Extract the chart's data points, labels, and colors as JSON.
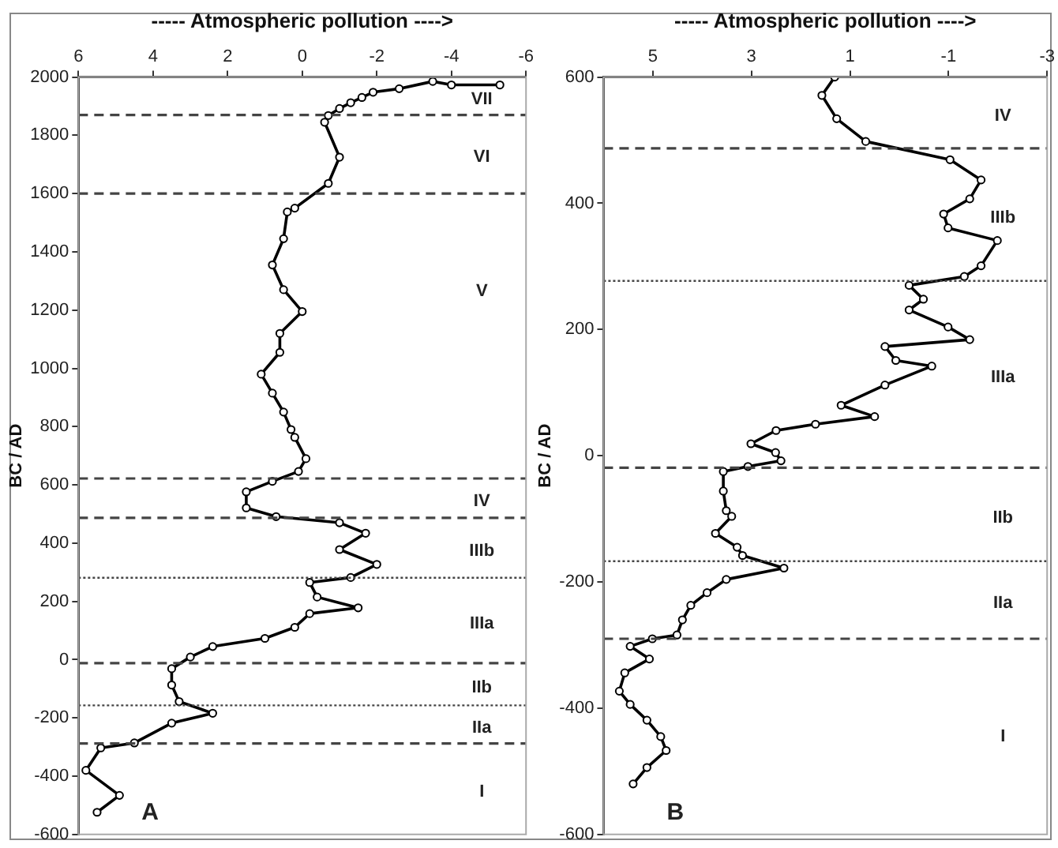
{
  "chart_data": [
    {
      "type": "line",
      "xlabel": "----- Atmospheric pollution ---->",
      "ylabel": "BC / AD",
      "xlim": [
        6,
        -6
      ],
      "xticks": [
        6,
        4,
        2,
        0,
        -2,
        -4,
        -6
      ],
      "ylim": [
        -600,
        2000
      ],
      "yticks": [
        -600,
        -400,
        -200,
        0,
        200,
        400,
        600,
        800,
        1000,
        1200,
        1400,
        1600,
        1800,
        2000
      ],
      "grid": false,
      "legend": false,
      "marker": "circle",
      "line_style": "solid",
      "series": [
        {
          "color": "#000000",
          "x": [
            -5.3,
            -4.0,
            -3.5,
            -2.6,
            -1.9,
            -1.6,
            -1.3,
            -1.0,
            -0.7,
            -0.6,
            -1.0,
            -0.7,
            0.2,
            0.4,
            0.5,
            0.8,
            0.5,
            0.0,
            0.6,
            0.6,
            1.1,
            0.8,
            0.5,
            0.3,
            0.2,
            -0.1,
            0.1,
            0.8,
            1.5,
            1.5,
            0.7,
            -1.0,
            -1.7,
            -1.0,
            -2.0,
            -1.3,
            -0.2,
            -0.4,
            -1.5,
            -0.2,
            0.2,
            1.0,
            2.4,
            3.0,
            3.5,
            3.5,
            3.3,
            2.4,
            3.5,
            4.5,
            5.4,
            5.8,
            4.9,
            5.5
          ],
          "values": [
            1973,
            1973,
            1985,
            1960,
            1948,
            1930,
            1912,
            1892,
            1868,
            1845,
            1725,
            1635,
            1550,
            1537,
            1445,
            1355,
            1270,
            1195,
            1120,
            1055,
            980,
            915,
            850,
            790,
            763,
            690,
            646,
            612,
            576,
            521,
            491,
            470,
            434,
            378,
            327,
            282,
            265,
            215,
            178,
            158,
            111,
            73,
            45,
            9,
            -31,
            -87,
            -144,
            -184,
            -218,
            -286,
            -303,
            -380,
            -466,
            -524
          ]
        }
      ],
      "ref_lines": [
        {
          "axis": "y",
          "value": 1870,
          "line_style": "dashed"
        },
        {
          "axis": "y",
          "value": 1600,
          "line_style": "dashed"
        },
        {
          "axis": "y",
          "value": 622,
          "line_style": "dashed"
        },
        {
          "axis": "y",
          "value": 487,
          "line_style": "dashed"
        },
        {
          "axis": "y",
          "value": 281,
          "line_style": "dotted"
        },
        {
          "axis": "y",
          "value": -12,
          "line_style": "dashed"
        },
        {
          "axis": "y",
          "value": -157,
          "line_style": "dotted"
        },
        {
          "axis": "y",
          "value": -288,
          "line_style": "dashed"
        }
      ],
      "annotations": [
        "VII",
        "VI",
        "V",
        "IV",
        "IIIb",
        "IIIa",
        "IIb",
        "IIa",
        "I",
        "A"
      ]
    },
    {
      "type": "line",
      "xlabel": "----- Atmospheric pollution ---->",
      "ylabel": "BC / AD",
      "xlim": [
        6,
        -3
      ],
      "xticks": [
        5,
        3,
        1,
        -1,
        -3
      ],
      "ylim": [
        -600,
        600
      ],
      "yticks": [
        -600,
        -400,
        -200,
        0,
        200,
        400,
        600
      ],
      "grid": false,
      "legend": false,
      "marker": "circle",
      "line_style": "solid",
      "series": [
        {
          "color": "#000000",
          "x": [
            1.31,
            1.57,
            1.27,
            0.68,
            -1.03,
            -1.66,
            -1.43,
            -0.9,
            -0.99,
            -1.99,
            -1.66,
            -1.32,
            -0.2,
            -0.49,
            -0.2,
            -0.99,
            -1.43,
            0.29,
            0.07,
            -0.66,
            0.29,
            1.18,
            0.5,
            1.7,
            2.5,
            3.01,
            2.51,
            2.4,
            3.07,
            3.57,
            3.57,
            3.51,
            3.4,
            3.73,
            3.29,
            3.18,
            2.34,
            3.51,
            3.9,
            4.23,
            4.4,
            4.51,
            5.01,
            5.46,
            5.07,
            5.57,
            5.68,
            5.46,
            5.12,
            4.84,
            4.73,
            5.12,
            5.4
          ],
          "values": [
            600,
            571,
            534,
            498,
            469,
            437,
            407,
            383,
            361,
            341,
            301,
            284,
            270,
            248,
            231,
            204,
            184,
            173,
            151,
            142,
            112,
            80,
            62,
            50,
            40,
            19,
            5,
            -8,
            -17,
            -25,
            -56,
            -87,
            -96,
            -123,
            -145,
            -158,
            -178,
            -196,
            -217,
            -237,
            -260,
            -284,
            -290,
            -302,
            -322,
            -344,
            -373,
            -394,
            -419,
            -445,
            -467,
            -494,
            -520
          ]
        }
      ],
      "ref_lines": [
        {
          "axis": "y",
          "value": 487,
          "line_style": "dashed"
        },
        {
          "axis": "y",
          "value": 277,
          "line_style": "dotted"
        },
        {
          "axis": "y",
          "value": -19,
          "line_style": "dashed"
        },
        {
          "axis": "y",
          "value": -167,
          "line_style": "dotted"
        },
        {
          "axis": "y",
          "value": -290,
          "line_style": "dashed"
        }
      ],
      "annotations": [
        "IV",
        "IIIb",
        "IIIa",
        "IIb",
        "IIa",
        "I",
        "B"
      ]
    }
  ]
}
